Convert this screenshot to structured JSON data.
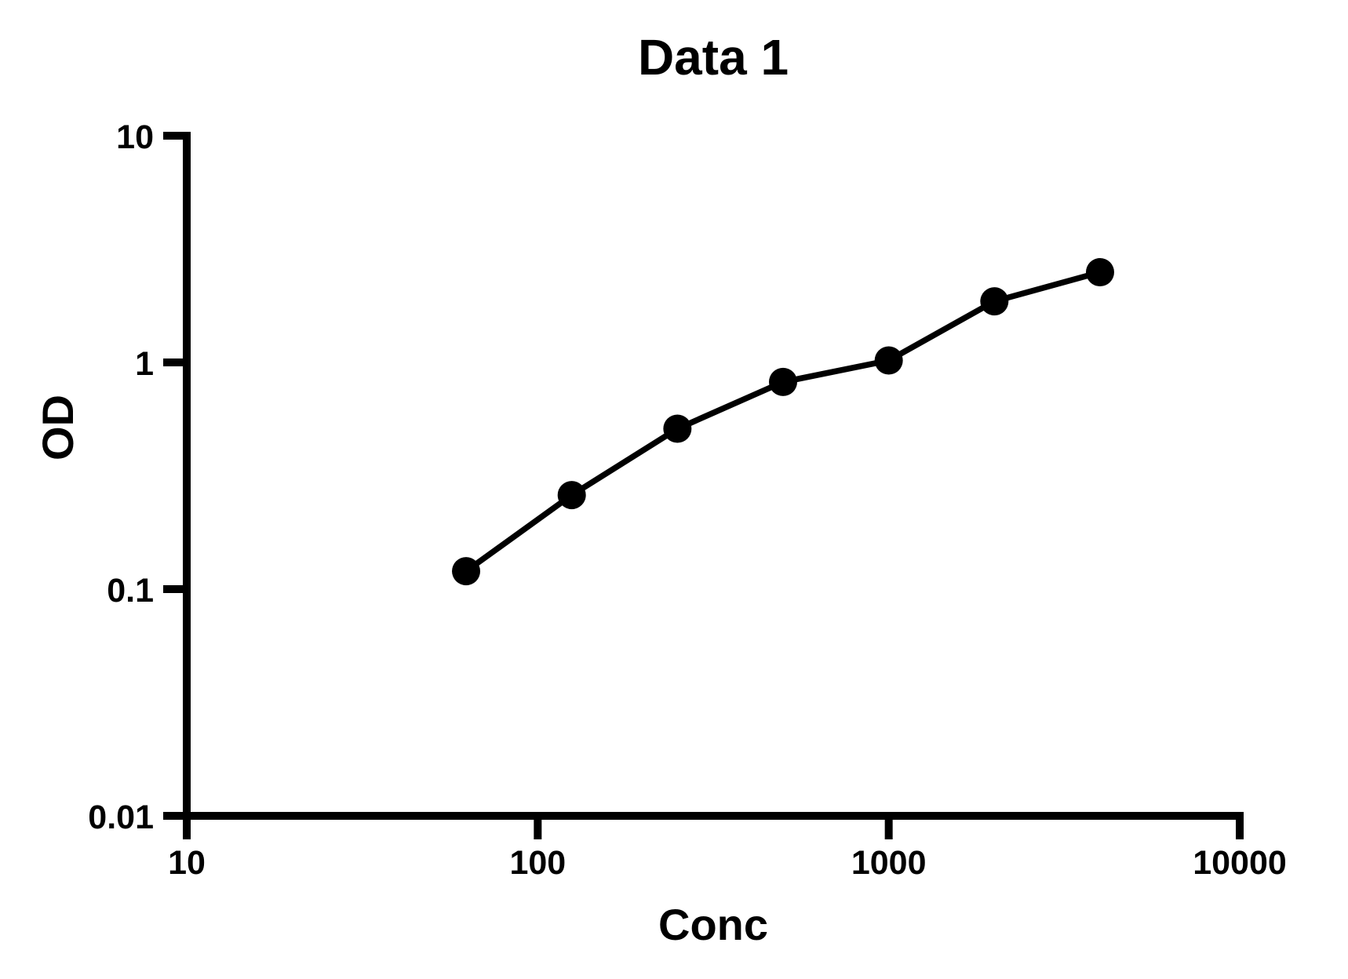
{
  "chart_data": {
    "type": "line",
    "title": "Data 1",
    "xlabel": "Conc",
    "ylabel": "OD",
    "x_scale": "log10",
    "y_scale": "log10",
    "xlim": [
      10,
      10000
    ],
    "ylim": [
      0.01,
      10
    ],
    "x_ticks": [
      10,
      100,
      1000,
      10000
    ],
    "x_tick_labels": [
      "10",
      "100",
      "1000",
      "10000"
    ],
    "y_ticks": [
      0.01,
      0.1,
      1,
      10
    ],
    "y_tick_labels": [
      "0.01",
      "0.1",
      "1",
      "10"
    ],
    "grid": false,
    "legend": "none",
    "marker": "filled-circle",
    "line_color": "#000000",
    "marker_color": "#000000",
    "background_color": "#ffffff",
    "series": [
      {
        "name": "Data 1",
        "x": [
          62.5,
          125,
          250,
          500,
          1000,
          2000,
          4000
        ],
        "y": [
          0.12,
          0.26,
          0.51,
          0.82,
          1.02,
          1.86,
          2.5
        ]
      }
    ]
  }
}
